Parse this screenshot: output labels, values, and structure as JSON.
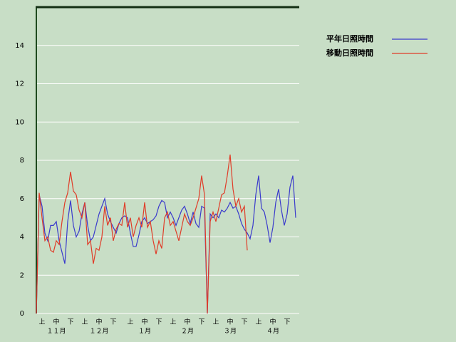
{
  "chart_data": {
    "type": "line",
    "series": [
      {
        "name": "平年日照時間",
        "color": "#3a3acc",
        "values": [
          0,
          6.2,
          5.6,
          4.2,
          3.8,
          4.6,
          4.6,
          4.8,
          3.8,
          3.2,
          2.6,
          4.8,
          5.9,
          4.6,
          4.0,
          4.3,
          5.2,
          5.8,
          4.6,
          3.8,
          4.0,
          4.6,
          5.2,
          5.6,
          6.0,
          5.2,
          4.8,
          4.5,
          4.2,
          4.7,
          5.0,
          5.1,
          5.0,
          4.2,
          3.5,
          3.5,
          4.1,
          4.8,
          5.0,
          4.7,
          4.8,
          4.9,
          5.1,
          5.6,
          5.9,
          5.8,
          5.0,
          5.3,
          5.0,
          4.6,
          5.0,
          5.4,
          5.6,
          5.2,
          4.7,
          5.3,
          4.7,
          4.5,
          5.6,
          5.5,
          0,
          5.2,
          5.0,
          5.2,
          5.0,
          5.4,
          5.3,
          5.5,
          5.8,
          5.5,
          5.6,
          5.2,
          4.7,
          4.4,
          4.2,
          3.9,
          4.6,
          6.2,
          7.2,
          5.5,
          5.3,
          4.6,
          3.7,
          4.5,
          5.8,
          6.5,
          5.4,
          4.6,
          5.2,
          6.6,
          7.2,
          5.0
        ]
      },
      {
        "name": "移動日照時間",
        "color": "#e03c28",
        "values": [
          0,
          6.3,
          5.0,
          3.8,
          4.0,
          3.3,
          3.2,
          3.8,
          3.6,
          4.8,
          5.8,
          6.3,
          7.4,
          6.4,
          6.2,
          5.4,
          5.0,
          5.8,
          3.6,
          3.8,
          2.6,
          3.4,
          3.3,
          4.0,
          5.6,
          4.6,
          5.0,
          3.8,
          4.4,
          4.7,
          4.6,
          5.8,
          4.5,
          5.0,
          4.0,
          4.6,
          5.0,
          4.5,
          5.8,
          4.5,
          4.8,
          3.8,
          3.1,
          3.8,
          3.4,
          5.0,
          5.3,
          4.6,
          4.8,
          4.3,
          3.8,
          4.5,
          5.2,
          4.8,
          4.6,
          5.0,
          5.5,
          6.0,
          7.2,
          6.2,
          0,
          4.8,
          5.3,
          4.8,
          5.5,
          6.2,
          6.3,
          7.2,
          8.3,
          6.5,
          5.6,
          6.0,
          5.3,
          5.6,
          3.3,
          null,
          null,
          null,
          null,
          null,
          null,
          null,
          null,
          null,
          null,
          null,
          null,
          null,
          null,
          null,
          null,
          null
        ]
      }
    ],
    "ylim": [
      0,
      16
    ],
    "yticks": [
      0,
      2,
      4,
      6,
      8,
      10,
      12,
      14
    ],
    "xlim": [
      0,
      91
    ],
    "xticks": [
      {
        "value": 2,
        "label": "上"
      },
      {
        "value": 7,
        "label": "中"
      },
      {
        "value": 12,
        "label": "下"
      },
      {
        "value": 17,
        "label": "上"
      },
      {
        "value": 22,
        "label": "中"
      },
      {
        "value": 27,
        "label": "下"
      },
      {
        "value": 33,
        "label": "上"
      },
      {
        "value": 38,
        "label": "中"
      },
      {
        "value": 43,
        "label": "下"
      },
      {
        "value": 48,
        "label": "上"
      },
      {
        "value": 53,
        "label": "中"
      },
      {
        "value": 58,
        "label": "下"
      },
      {
        "value": 63,
        "label": "上"
      },
      {
        "value": 68,
        "label": "中"
      },
      {
        "value": 73,
        "label": "下"
      },
      {
        "value": 78,
        "label": "上"
      },
      {
        "value": 83,
        "label": "中"
      },
      {
        "value": 88,
        "label": "下"
      }
    ],
    "month_labels": [
      {
        "value": 7,
        "label": "１１月"
      },
      {
        "value": 22,
        "label": "１２月"
      },
      {
        "value": 38,
        "label": "１月"
      },
      {
        "value": 53,
        "label": "２月"
      },
      {
        "value": 68,
        "label": "３月"
      },
      {
        "value": 83,
        "label": "４月"
      }
    ],
    "grid": true
  }
}
